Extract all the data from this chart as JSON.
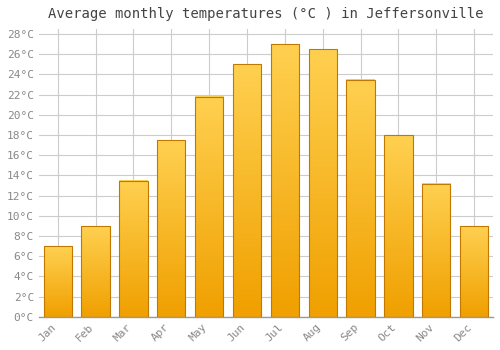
{
  "title": "Average monthly temperatures (°C ) in Jeffersonville",
  "months": [
    "Jan",
    "Feb",
    "Mar",
    "Apr",
    "May",
    "Jun",
    "Jul",
    "Aug",
    "Sep",
    "Oct",
    "Nov",
    "Dec"
  ],
  "values": [
    7.0,
    9.0,
    13.5,
    17.5,
    21.8,
    25.0,
    27.0,
    26.5,
    23.5,
    18.0,
    13.2,
    9.0
  ],
  "bar_color_top": "#FFD050",
  "bar_color_bottom": "#F0A000",
  "bar_edge_color": "#C07800",
  "background_color": "#FFFFFF",
  "grid_color": "#CCCCCC",
  "tick_label_color": "#888888",
  "title_color": "#444444",
  "ylim_max": 28,
  "ytick_step": 2,
  "title_fontsize": 10,
  "tick_fontsize": 8,
  "font_family": "monospace"
}
